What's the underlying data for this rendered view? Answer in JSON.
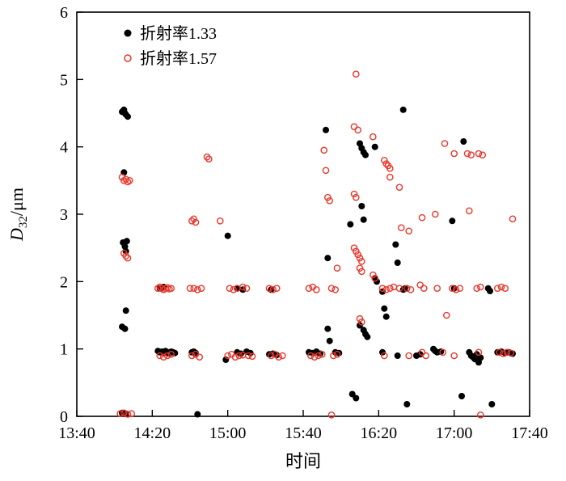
{
  "chart_data": {
    "type": "scatter",
    "title": "",
    "xlabel": "时间",
    "ylabel": "D32/μm",
    "ylabel_parts": {
      "symbol": "D",
      "subscript": "32",
      "unit": "/μm"
    },
    "x_encoding": "minutes-after-13:40",
    "xlim": [
      0,
      240
    ],
    "ylim": [
      0,
      6
    ],
    "x_ticks": [
      "13:40",
      "14:20",
      "15:00",
      "15:40",
      "16:20",
      "17:00",
      "17:40"
    ],
    "x_tick_minutes": [
      0,
      40,
      80,
      120,
      160,
      200,
      240
    ],
    "y_ticks": [
      0,
      1,
      2,
      3,
      4,
      5,
      6
    ],
    "grid": false,
    "legend": {
      "position": "top-left-inside",
      "items": [
        {
          "label": "折射率1.33",
          "marker": "filled-circle",
          "color": "#000000"
        },
        {
          "label": "折射率1.57",
          "marker": "open-circle",
          "color": "#e8372c"
        }
      ]
    },
    "series": [
      {
        "name": "折射率1.33",
        "marker": "filled-circle",
        "color": "#000000",
        "points": [
          [
            24,
            4.52
          ],
          [
            25,
            4.55
          ],
          [
            25.5,
            4.5
          ],
          [
            26,
            4.48
          ],
          [
            27,
            4.45
          ],
          [
            25,
            3.62
          ],
          [
            24.5,
            2.58
          ],
          [
            25.5,
            2.52
          ],
          [
            26,
            2.45
          ],
          [
            26.5,
            2.6
          ],
          [
            26,
            1.57
          ],
          [
            24,
            1.33
          ],
          [
            25.5,
            1.3
          ],
          [
            24,
            0.05
          ],
          [
            26,
            0.04
          ],
          [
            43,
            0.97
          ],
          [
            44,
            0.95
          ],
          [
            45,
            0.96
          ],
          [
            46,
            0.94
          ],
          [
            47,
            0.97
          ],
          [
            48,
            0.95
          ],
          [
            49,
            0.93
          ],
          [
            50,
            0.96
          ],
          [
            51,
            0.95
          ],
          [
            52,
            0.94
          ],
          [
            44,
            1.9
          ],
          [
            46,
            1.92
          ],
          [
            61,
            0.95
          ],
          [
            62,
            0.96
          ],
          [
            63,
            0.94
          ],
          [
            64,
            0.03
          ],
          [
            79,
            0.84
          ],
          [
            80,
            2.68
          ],
          [
            85,
            1.9
          ],
          [
            88,
            1.88
          ],
          [
            85,
            0.95
          ],
          [
            87,
            0.93
          ],
          [
            90,
            0.96
          ],
          [
            92,
            0.94
          ],
          [
            102,
            0.92
          ],
          [
            103,
            1.88
          ],
          [
            104,
            0.93
          ],
          [
            106,
            0.91
          ],
          [
            123,
            0.95
          ],
          [
            125,
            0.94
          ],
          [
            127,
            0.96
          ],
          [
            129,
            0.93
          ],
          [
            132,
            4.25
          ],
          [
            133,
            2.35
          ],
          [
            133,
            1.3
          ],
          [
            134,
            1.12
          ],
          [
            137,
            0.95
          ],
          [
            139,
            0.94
          ],
          [
            145,
            2.85
          ],
          [
            146,
            0.33
          ],
          [
            148,
            0.27
          ],
          [
            150,
            4.05
          ],
          [
            151,
            3.98
          ],
          [
            152,
            3.92
          ],
          [
            153,
            3.88
          ],
          [
            151,
            3.12
          ],
          [
            152,
            2.92
          ],
          [
            150,
            1.35
          ],
          [
            152,
            1.28
          ],
          [
            153,
            1.22
          ],
          [
            154,
            1.18
          ],
          [
            158,
            4.0
          ],
          [
            158,
            2.05
          ],
          [
            159,
            2.0
          ],
          [
            162,
            1.85
          ],
          [
            163,
            1.6
          ],
          [
            164,
            1.48
          ],
          [
            162,
            0.95
          ],
          [
            169,
            2.55
          ],
          [
            170,
            2.28
          ],
          [
            170,
            0.9
          ],
          [
            173,
            4.55
          ],
          [
            173,
            1.88
          ],
          [
            174,
            1.9
          ],
          [
            175,
            0.18
          ],
          [
            180,
            0.9
          ],
          [
            182,
            0.92
          ],
          [
            189,
            1.0
          ],
          [
            190,
            0.97
          ],
          [
            191,
            0.95
          ],
          [
            193,
            0.96
          ],
          [
            199,
            2.9
          ],
          [
            200,
            1.9
          ],
          [
            205,
            4.08
          ],
          [
            204,
            0.3
          ],
          [
            208,
            0.95
          ],
          [
            209,
            0.9
          ],
          [
            210,
            0.88
          ],
          [
            211,
            0.85
          ],
          [
            212,
            0.92
          ],
          [
            213,
            0.8
          ],
          [
            214,
            0.87
          ],
          [
            218,
            1.9
          ],
          [
            219,
            1.86
          ],
          [
            220,
            0.18
          ],
          [
            223,
            0.95
          ],
          [
            225,
            0.96
          ],
          [
            227,
            0.94
          ],
          [
            229,
            0.95
          ],
          [
            231,
            0.93
          ]
        ]
      },
      {
        "name": "折射率1.57",
        "marker": "open-circle",
        "color": "#e8372c",
        "points": [
          [
            24,
            3.55
          ],
          [
            25,
            3.5
          ],
          [
            26,
            3.52
          ],
          [
            27,
            3.48
          ],
          [
            28,
            3.5
          ],
          [
            25,
            2.42
          ],
          [
            26,
            2.38
          ],
          [
            27,
            2.35
          ],
          [
            23,
            0.04
          ],
          [
            25,
            0.05
          ],
          [
            27,
            0.03
          ],
          [
            29,
            0.04
          ],
          [
            43,
            1.9
          ],
          [
            44,
            1.92
          ],
          [
            45,
            1.9
          ],
          [
            46,
            1.88
          ],
          [
            47,
            1.9
          ],
          [
            48,
            1.91
          ],
          [
            49,
            1.89
          ],
          [
            50,
            1.9
          ],
          [
            44,
            0.9
          ],
          [
            46,
            0.88
          ],
          [
            48,
            0.9
          ],
          [
            50,
            0.92
          ],
          [
            61,
            2.9
          ],
          [
            62,
            2.93
          ],
          [
            63,
            2.88
          ],
          [
            60,
            1.9
          ],
          [
            62,
            1.9
          ],
          [
            64,
            1.88
          ],
          [
            66,
            1.9
          ],
          [
            61,
            0.9
          ],
          [
            63,
            0.92
          ],
          [
            65,
            0.88
          ],
          [
            69,
            3.85
          ],
          [
            70,
            3.82
          ],
          [
            76,
            2.9
          ],
          [
            81,
            1.9
          ],
          [
            83,
            1.88
          ],
          [
            85,
            1.9
          ],
          [
            88,
            1.92
          ],
          [
            90,
            1.9
          ],
          [
            80,
            0.9
          ],
          [
            82,
            0.92
          ],
          [
            84,
            0.88
          ],
          [
            86,
            0.9
          ],
          [
            88,
            0.91
          ],
          [
            91,
            0.9
          ],
          [
            93,
            0.89
          ],
          [
            102,
            1.9
          ],
          [
            104,
            1.88
          ],
          [
            106,
            1.9
          ],
          [
            103,
            0.9
          ],
          [
            105,
            0.92
          ],
          [
            107,
            0.88
          ],
          [
            109,
            0.9
          ],
          [
            123,
            1.9
          ],
          [
            125,
            1.92
          ],
          [
            127,
            1.88
          ],
          [
            124,
            0.9
          ],
          [
            126,
            0.88
          ],
          [
            128,
            0.9
          ],
          [
            130,
            0.92
          ],
          [
            131,
            3.95
          ],
          [
            132,
            3.65
          ],
          [
            133,
            3.25
          ],
          [
            134,
            3.2
          ],
          [
            135,
            1.9
          ],
          [
            137,
            1.88
          ],
          [
            138,
            2.2
          ],
          [
            136,
            0.9
          ],
          [
            138,
            0.92
          ],
          [
            135,
            0.02
          ],
          [
            148,
            5.08
          ],
          [
            147,
            4.3
          ],
          [
            149,
            4.25
          ],
          [
            147,
            3.3
          ],
          [
            148,
            3.25
          ],
          [
            147,
            2.5
          ],
          [
            148,
            2.45
          ],
          [
            149,
            2.4
          ],
          [
            150,
            2.35
          ],
          [
            151,
            2.3
          ],
          [
            150,
            2.2
          ],
          [
            151,
            2.15
          ],
          [
            150,
            1.45
          ],
          [
            151,
            1.4
          ],
          [
            157,
            4.15
          ],
          [
            157,
            2.1
          ],
          [
            158,
            2.05
          ],
          [
            163,
            3.8
          ],
          [
            164,
            3.75
          ],
          [
            165,
            3.72
          ],
          [
            166,
            3.68
          ],
          [
            166,
            3.55
          ],
          [
            162,
            1.9
          ],
          [
            164,
            1.88
          ],
          [
            166,
            1.9
          ],
          [
            168,
            1.92
          ],
          [
            163,
            0.9
          ],
          [
            171,
            3.4
          ],
          [
            172,
            2.8
          ],
          [
            171,
            1.9
          ],
          [
            176,
            2.75
          ],
          [
            175,
            1.9
          ],
          [
            177,
            1.88
          ],
          [
            176,
            0.9
          ],
          [
            183,
            2.95
          ],
          [
            182,
            1.95
          ],
          [
            184,
            1.9
          ],
          [
            183,
            0.95
          ],
          [
            185,
            0.9
          ],
          [
            190,
            3.0
          ],
          [
            191,
            1.9
          ],
          [
            195,
            4.05
          ],
          [
            196,
            1.5
          ],
          [
            194,
            0.95
          ],
          [
            200,
            3.9
          ],
          [
            199,
            1.9
          ],
          [
            201,
            1.88
          ],
          [
            203,
            1.9
          ],
          [
            200,
            0.9
          ],
          [
            207,
            3.9
          ],
          [
            209,
            3.88
          ],
          [
            208,
            3.05
          ],
          [
            213,
            3.9
          ],
          [
            215,
            3.88
          ],
          [
            212,
            1.9
          ],
          [
            214,
            1.92
          ],
          [
            213,
            0.95
          ],
          [
            214,
            0.02
          ],
          [
            231,
            2.93
          ],
          [
            223,
            1.9
          ],
          [
            225,
            1.92
          ],
          [
            227,
            1.9
          ],
          [
            224,
            0.95
          ],
          [
            226,
            0.93
          ],
          [
            228,
            0.95
          ],
          [
            230,
            0.94
          ]
        ]
      }
    ]
  }
}
